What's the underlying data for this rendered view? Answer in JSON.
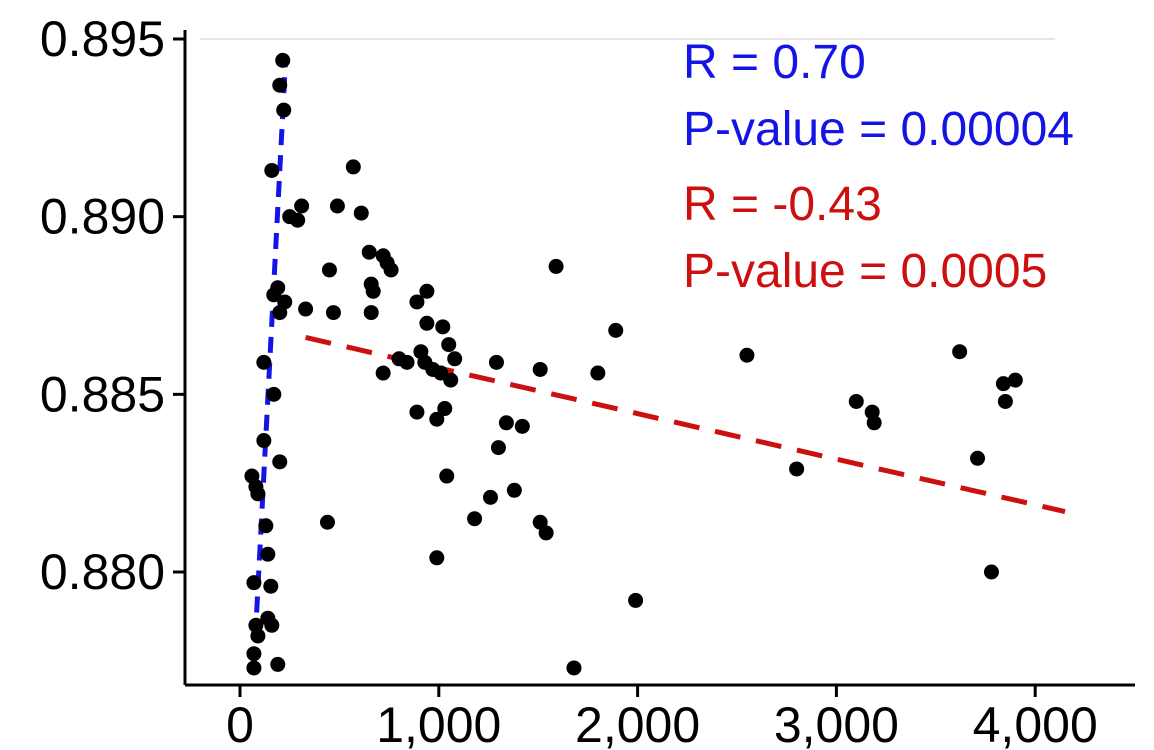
{
  "chart_data": {
    "type": "scatter",
    "title": "",
    "xlabel": "",
    "ylabel": "",
    "xlim": [
      -150,
      4300
    ],
    "ylim": [
      0.8771,
      0.8955
    ],
    "x_ticks": [
      0,
      1000,
      2000,
      3000,
      4000
    ],
    "x_tick_labels": [
      "0",
      "1,000",
      "2,000",
      "3,000",
      "4,000"
    ],
    "y_ticks": [
      0.895,
      0.89,
      0.885,
      0.88
    ],
    "y_tick_labels": [
      "0.895",
      "0.890",
      "0.885",
      "0.880"
    ],
    "grid": false,
    "point_color": "#000000",
    "points": [
      [
        215,
        0.8944
      ],
      [
        200,
        0.8937
      ],
      [
        220,
        0.893
      ],
      [
        160,
        0.8913
      ],
      [
        250,
        0.89
      ],
      [
        290,
        0.8899
      ],
      [
        310,
        0.8903
      ],
      [
        490,
        0.8903
      ],
      [
        570,
        0.8914
      ],
      [
        610,
        0.8901
      ],
      [
        650,
        0.889
      ],
      [
        720,
        0.8889
      ],
      [
        740,
        0.8887
      ],
      [
        760,
        0.8885
      ],
      [
        450,
        0.8885
      ],
      [
        660,
        0.8881
      ],
      [
        670,
        0.8879
      ],
      [
        1590,
        0.8886
      ],
      [
        170,
        0.8878
      ],
      [
        190,
        0.888
      ],
      [
        225,
        0.8876
      ],
      [
        330,
        0.8874
      ],
      [
        470,
        0.8873
      ],
      [
        660,
        0.8873
      ],
      [
        200,
        0.8873
      ],
      [
        890,
        0.8876
      ],
      [
        940,
        0.8879
      ],
      [
        940,
        0.887
      ],
      [
        1020,
        0.8869
      ],
      [
        1890,
        0.8868
      ],
      [
        1050,
        0.8864
      ],
      [
        910,
        0.8862
      ],
      [
        1080,
        0.886
      ],
      [
        800,
        0.886
      ],
      [
        840,
        0.8859
      ],
      [
        930,
        0.8859
      ],
      [
        970,
        0.8857
      ],
      [
        1010,
        0.8856
      ],
      [
        1290,
        0.8859
      ],
      [
        1510,
        0.8857
      ],
      [
        720,
        0.8856
      ],
      [
        1060,
        0.8854
      ],
      [
        1800,
        0.8856
      ],
      [
        2550,
        0.8861
      ],
      [
        3620,
        0.8862
      ],
      [
        3840,
        0.8853
      ],
      [
        3900,
        0.8854
      ],
      [
        3850,
        0.8848
      ],
      [
        120,
        0.8859
      ],
      [
        170,
        0.885
      ],
      [
        1030,
        0.8846
      ],
      [
        890,
        0.8845
      ],
      [
        990,
        0.8843
      ],
      [
        3100,
        0.8848
      ],
      [
        3180,
        0.8845
      ],
      [
        3190,
        0.8842
      ],
      [
        1340,
        0.8842
      ],
      [
        1420,
        0.8841
      ],
      [
        120,
        0.8837
      ],
      [
        1300,
        0.8835
      ],
      [
        3710,
        0.8832
      ],
      [
        200,
        0.8831
      ],
      [
        2800,
        0.8829
      ],
      [
        1040,
        0.8827
      ],
      [
        60,
        0.8827
      ],
      [
        80,
        0.8824
      ],
      [
        90,
        0.8822
      ],
      [
        1380,
        0.8823
      ],
      [
        1260,
        0.8821
      ],
      [
        1180,
        0.8815
      ],
      [
        1510,
        0.8814
      ],
      [
        1540,
        0.8811
      ],
      [
        440,
        0.8814
      ],
      [
        130,
        0.8813
      ],
      [
        140,
        0.8805
      ],
      [
        990,
        0.8804
      ],
      [
        3780,
        0.88
      ],
      [
        70,
        0.8797
      ],
      [
        155,
        0.8796
      ],
      [
        1990,
        0.8792
      ],
      [
        140,
        0.8787
      ],
      [
        80,
        0.8785
      ],
      [
        160,
        0.8785
      ],
      [
        90,
        0.8782
      ],
      [
        70,
        0.8777
      ],
      [
        190,
        0.8774
      ],
      [
        70,
        0.8773
      ],
      [
        1680,
        0.8773
      ]
    ],
    "fit_lines": [
      {
        "color": "#1414e6",
        "x": [
          70,
          230
        ],
        "y": [
          0.8774,
          0.8945
        ],
        "style": "dashed"
      },
      {
        "color": "#cc1010",
        "x": [
          330,
          4150
        ],
        "y": [
          0.8866,
          0.8817
        ],
        "style": "dashed"
      }
    ],
    "annotations": [
      {
        "text": "R = 0.70",
        "color": "#1414e6"
      },
      {
        "text": "P-value = 0.00004",
        "color": "#1414e6"
      },
      {
        "text": "R = -0.43",
        "color": "#cc1010"
      },
      {
        "text": "P-value = 0.0005",
        "color": "#cc1010"
      }
    ]
  }
}
